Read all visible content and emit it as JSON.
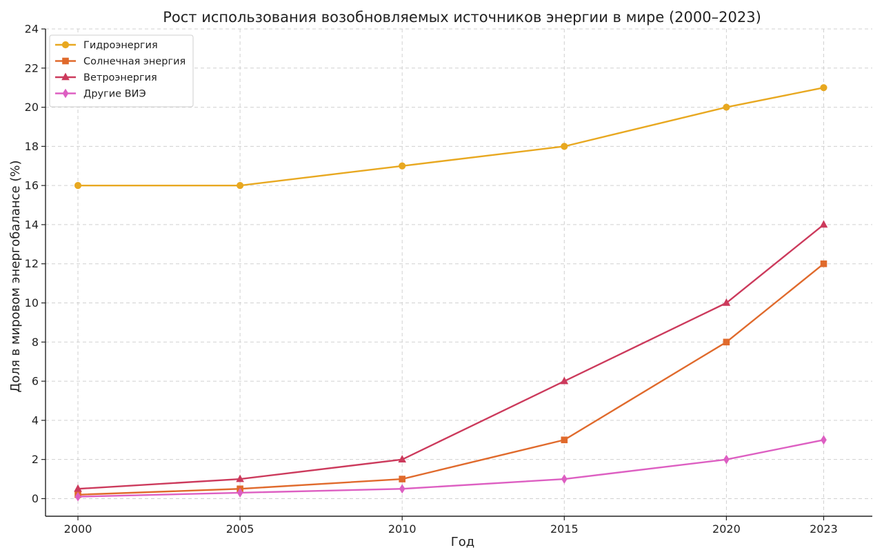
{
  "chart_data": {
    "type": "line",
    "title": "Рост использования возобновляемых источников энергии в мире (2000–2023)",
    "xlabel": "Год",
    "ylabel": "Доля в мировом энергобалансе (%)",
    "x": [
      2000,
      2005,
      2010,
      2015,
      2020,
      2023
    ],
    "xticks": [
      "2000",
      "2005",
      "2010",
      "2015",
      "2020",
      "2023"
    ],
    "ylim": [
      -0.9,
      24
    ],
    "yticks": [
      "0",
      "2",
      "4",
      "6",
      "8",
      "10",
      "12",
      "14",
      "16",
      "18",
      "20",
      "22",
      "24"
    ],
    "grid": true,
    "legend_position": "top-left",
    "series": [
      {
        "name": "Гидроэнергия",
        "marker": "circle",
        "color": "#E8A820",
        "values": [
          16,
          16,
          17,
          18,
          20,
          21
        ]
      },
      {
        "name": "Солнечная энергия",
        "marker": "square",
        "color": "#E06A2C",
        "values": [
          0.2,
          0.5,
          1,
          3,
          8,
          12
        ]
      },
      {
        "name": "Ветроэнергия",
        "marker": "triangle",
        "color": "#CC3A5C",
        "values": [
          0.5,
          1,
          2,
          6,
          10,
          14
        ]
      },
      {
        "name": "Другие ВИЭ",
        "marker": "diamond",
        "color": "#DD5FC2",
        "values": [
          0.1,
          0.3,
          0.5,
          1,
          2,
          3
        ]
      }
    ]
  }
}
